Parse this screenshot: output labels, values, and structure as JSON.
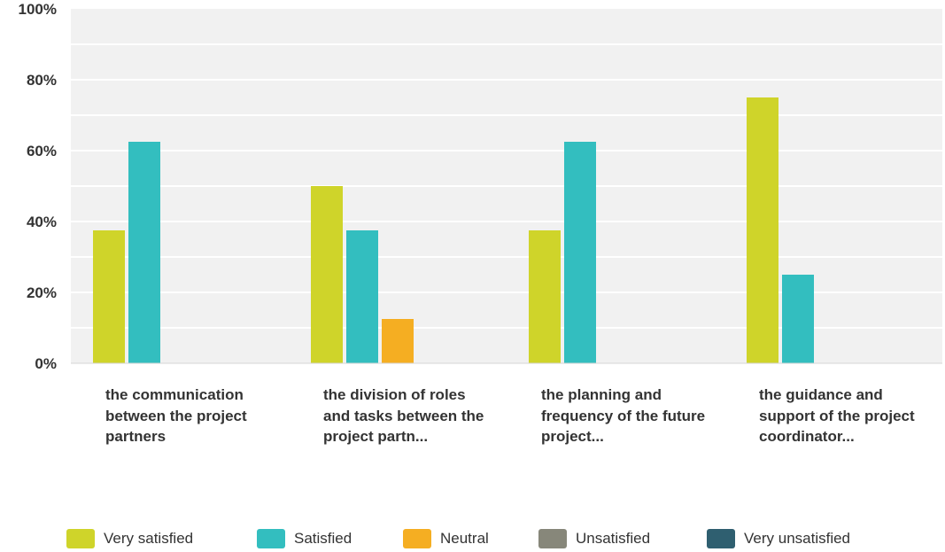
{
  "chart_data": {
    "type": "bar",
    "categories": [
      "the communication between the project partners",
      "the division of roles and tasks between the project partn...",
      "the planning and frequency of the future project...",
      "the guidance and support of the project coordinator..."
    ],
    "series": [
      {
        "name": "Very satisfied",
        "color": "#cfd42a",
        "values": [
          37.5,
          50.0,
          37.5,
          75.0
        ]
      },
      {
        "name": "Satisfied",
        "color": "#33bebf",
        "values": [
          62.5,
          37.5,
          62.5,
          25.0
        ]
      },
      {
        "name": "Neutral",
        "color": "#f5ae22",
        "values": [
          0,
          12.5,
          0,
          0
        ]
      },
      {
        "name": "Unsatisfied",
        "color": "#87877a",
        "values": [
          0,
          0,
          0,
          0
        ]
      },
      {
        "name": "Very unsatisfied",
        "color": "#2f5f70",
        "values": [
          0,
          0,
          0,
          0
        ]
      }
    ],
    "yticks": [
      "0%",
      "20%",
      "40%",
      "60%",
      "80%",
      "100%"
    ],
    "ylim": [
      0,
      100
    ],
    "grid": true,
    "legend_position": "bottom",
    "plot_background": "#f1f1f1",
    "gridline_color": "#ffffff"
  }
}
